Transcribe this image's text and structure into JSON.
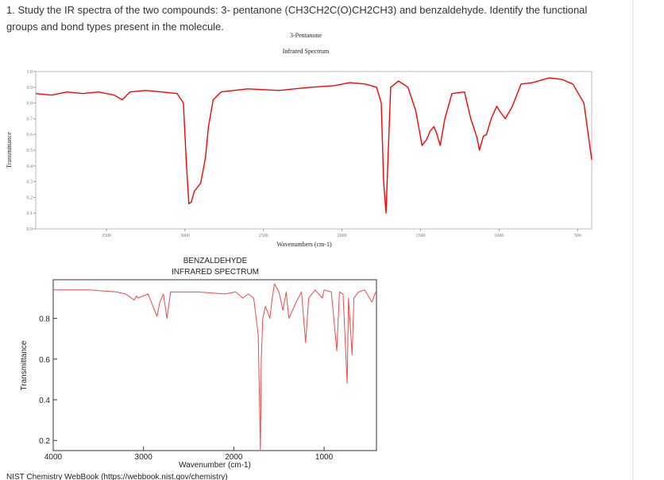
{
  "question": "1. Study the IR spectra of the two compounds: 3- pentanone (CH3CH2C(O)CH2CH3) and benzaldehyde. Identify the functional groups and bond types present in the molecule.",
  "chart_data": [
    {
      "type": "line",
      "title": "3-Pentanone",
      "subtitle": "Infrared Spectrum",
      "x_label": "Wavenumbers (cm-1)",
      "y_label": "Transmittance",
      "color": "#ff0000",
      "x": [
        3950,
        3850,
        3750,
        3650,
        3550,
        3450,
        3400,
        3350,
        3250,
        3150,
        3050,
        3010,
        2990,
        2975,
        2960,
        2940,
        2900,
        2870,
        2850,
        2820,
        2770,
        2600,
        2400,
        2200,
        2050,
        1950,
        1850,
        1780,
        1750,
        1735,
        1720,
        1705,
        1690,
        1640,
        1580,
        1530,
        1490,
        1460,
        1440,
        1415,
        1395,
        1375,
        1345,
        1300,
        1220,
        1180,
        1140,
        1125,
        1100,
        1080,
        1050,
        1015,
        990,
        960,
        915,
        860,
        785,
        680,
        600,
        530,
        460,
        410
      ],
      "values": [
        0.86,
        0.85,
        0.87,
        0.86,
        0.87,
        0.85,
        0.82,
        0.87,
        0.88,
        0.87,
        0.86,
        0.8,
        0.4,
        0.16,
        0.17,
        0.24,
        0.29,
        0.45,
        0.65,
        0.82,
        0.87,
        0.89,
        0.88,
        0.9,
        0.91,
        0.93,
        0.92,
        0.9,
        0.8,
        0.3,
        0.1,
        0.5,
        0.9,
        0.94,
        0.9,
        0.75,
        0.53,
        0.57,
        0.62,
        0.65,
        0.6,
        0.53,
        0.7,
        0.86,
        0.87,
        0.7,
        0.58,
        0.5,
        0.59,
        0.6,
        0.7,
        0.78,
        0.74,
        0.7,
        0.78,
        0.92,
        0.93,
        0.96,
        0.95,
        0.92,
        0.8,
        0.44
      ],
      "xlim": [
        3950,
        410
      ],
      "ylim": [
        0,
        1
      ],
      "xticks": [
        3500,
        3000,
        2500,
        2000,
        1500,
        1000,
        500
      ],
      "yticks": [
        {
          "value": 0,
          "label": "0.0"
        },
        0.1,
        0.2,
        0.3,
        0.4,
        0.5,
        0.6,
        0.7,
        0.8,
        0.9,
        {
          "value": 1,
          "label": "1.0"
        }
      ]
    },
    {
      "type": "line",
      "title": "BENZALDEHYDE",
      "subtitle": "INFRARED SPECTRUM",
      "x_label": "Wavenumber (cm-1)",
      "y_label": "Transmittance",
      "color": "#f04848",
      "source": "NIST Chemistry WebBook (https://webbook.nist.gov/chemistry)",
      "x": [
        4000,
        3600,
        3300,
        3200,
        3100,
        3080,
        3060,
        2950,
        2850,
        2820,
        2780,
        2740,
        2700,
        2400,
        2100,
        1980,
        1900,
        1840,
        1780,
        1730,
        1705,
        1695,
        1680,
        1650,
        1600,
        1580,
        1550,
        1500,
        1455,
        1420,
        1390,
        1310,
        1250,
        1205,
        1170,
        1100,
        1020,
        1000,
        920,
        860,
        830,
        790,
        745,
        730,
        690,
        670,
        620,
        550,
        470,
        430
      ],
      "values": [
        0.94,
        0.94,
        0.93,
        0.92,
        0.89,
        0.91,
        0.9,
        0.92,
        0.81,
        0.88,
        0.92,
        0.8,
        0.93,
        0.93,
        0.92,
        0.93,
        0.9,
        0.92,
        0.9,
        0.72,
        0.15,
        0.6,
        0.8,
        0.86,
        0.8,
        0.88,
        0.97,
        0.93,
        0.84,
        0.93,
        0.8,
        0.88,
        0.93,
        0.68,
        0.9,
        0.94,
        0.9,
        0.94,
        0.93,
        0.64,
        0.93,
        0.92,
        0.48,
        0.9,
        0.62,
        0.9,
        0.93,
        0.94,
        0.88,
        0.93
      ],
      "xlim": [
        4000,
        420
      ],
      "ylim": [
        0.15,
        0.99
      ],
      "xticks": [
        4000,
        3000,
        2000,
        1000
      ],
      "yticks": [
        0.8,
        0.6,
        0.4,
        0.2
      ]
    }
  ]
}
